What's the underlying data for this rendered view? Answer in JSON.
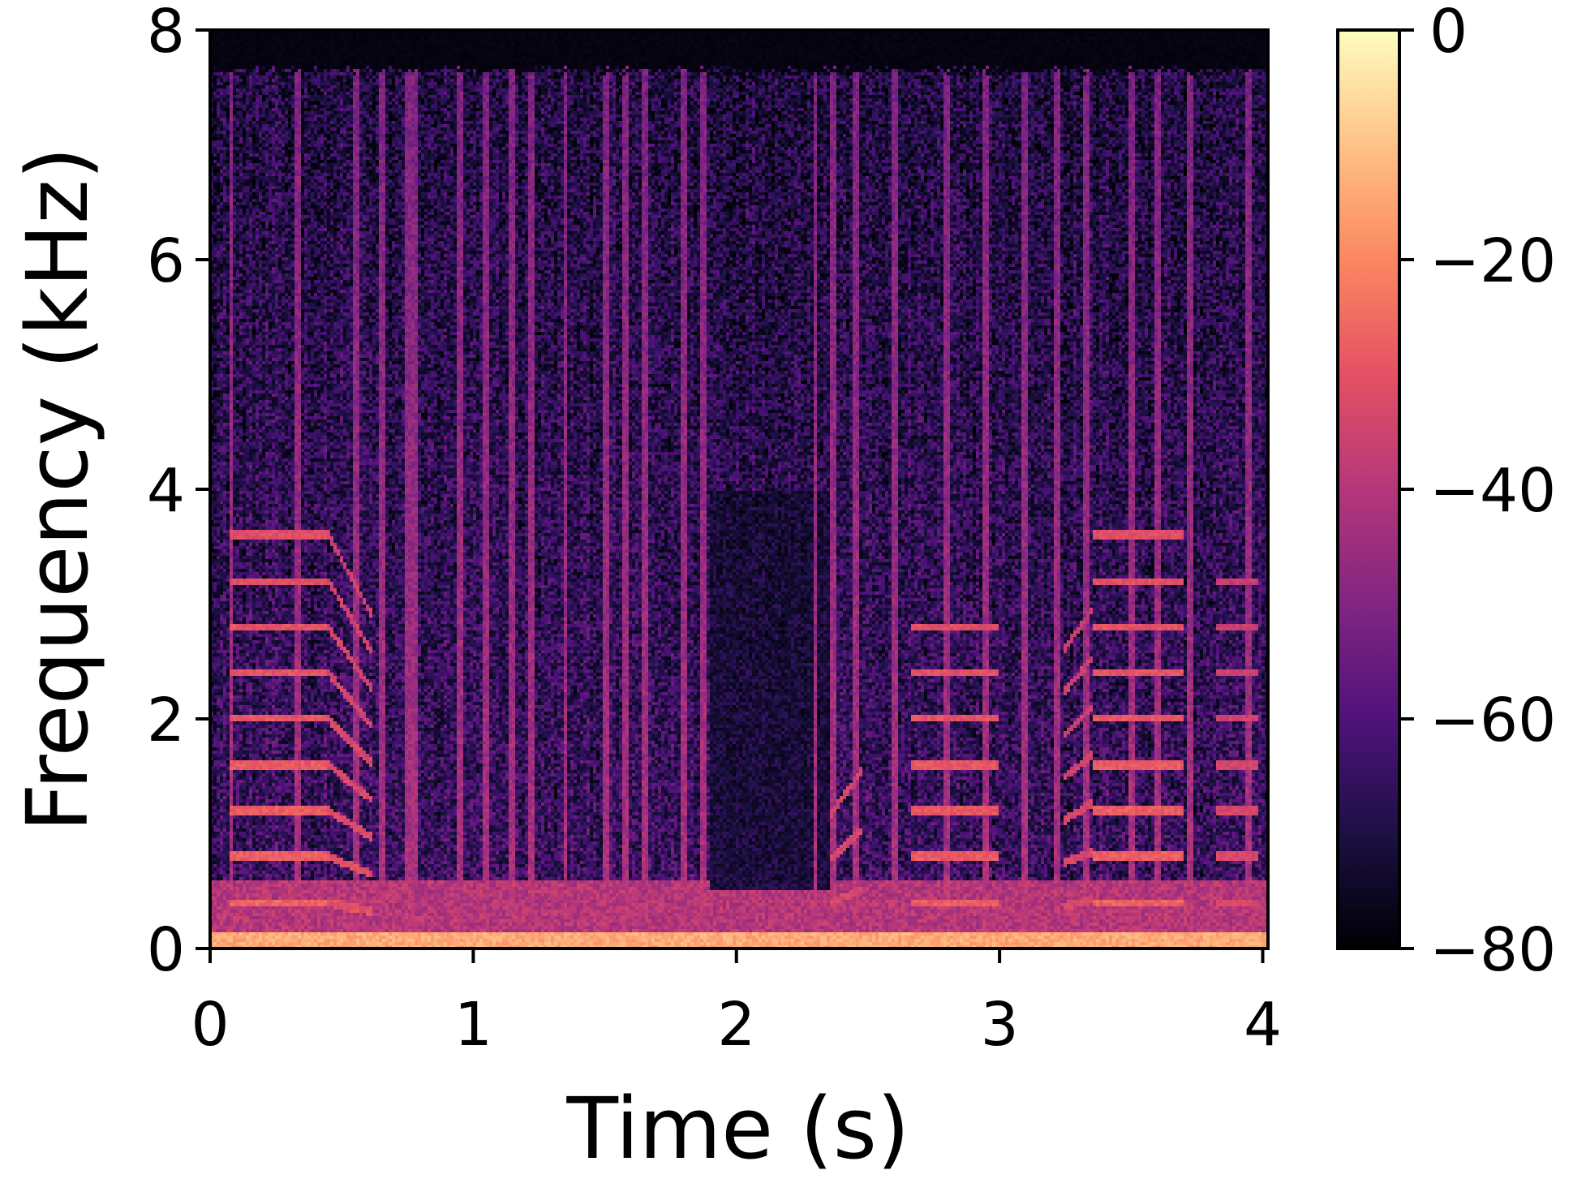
{
  "chart_data": {
    "type": "heatmap",
    "subtype": "spectrogram",
    "xlabel": "Time (s)",
    "ylabel": "Frequency (kHz)",
    "xlim": [
      0,
      4.02
    ],
    "ylim": [
      0,
      8
    ],
    "x_ticks": [
      {
        "value": 0,
        "label": "0"
      },
      {
        "value": 1,
        "label": "1"
      },
      {
        "value": 2,
        "label": "2"
      },
      {
        "value": 3,
        "label": "3"
      },
      {
        "value": 4,
        "label": "4"
      }
    ],
    "y_ticks": [
      {
        "value": 0,
        "label": "0"
      },
      {
        "value": 2,
        "label": "2"
      },
      {
        "value": 4,
        "label": "4"
      },
      {
        "value": 6,
        "label": "6"
      },
      {
        "value": 8,
        "label": "8"
      }
    ],
    "colorbar": {
      "colormap": "magma",
      "range": [
        -80,
        0
      ],
      "ticks": [
        {
          "value": 0,
          "label": "0"
        },
        {
          "value": -20,
          "label": "−20"
        },
        {
          "value": -40,
          "label": "−40"
        },
        {
          "value": -60,
          "label": "−60"
        },
        {
          "value": -80,
          "label": "−80"
        }
      ]
    },
    "content_max_freq_khz": 7.65,
    "noise_floor_db": -64,
    "low_band": {
      "max_khz": 0.15,
      "level_db": -14
    },
    "harmonic_segments": [
      {
        "t0": 0.08,
        "t1": 0.45,
        "f0_khz": 0.4,
        "f1_khz": 0.4,
        "harmonics": 9,
        "level_db": -26
      },
      {
        "t0": 0.45,
        "t1": 0.62,
        "f0_khz": 0.4,
        "f1_khz": 0.32,
        "harmonics": 9,
        "level_db": -30
      },
      {
        "t0": 2.35,
        "t1": 2.48,
        "f0_khz": 0.38,
        "f1_khz": 0.52,
        "harmonics": 3,
        "level_db": -32
      },
      {
        "t0": 2.66,
        "t1": 3.0,
        "f0_khz": 0.4,
        "f1_khz": 0.4,
        "harmonics": 7,
        "level_db": -27
      },
      {
        "t0": 3.24,
        "t1": 3.35,
        "f0_khz": 0.37,
        "f1_khz": 0.42,
        "harmonics": 7,
        "level_db": -32
      },
      {
        "t0": 3.35,
        "t1": 3.7,
        "f0_khz": 0.4,
        "f1_khz": 0.4,
        "harmonics": 9,
        "level_db": -26
      },
      {
        "t0": 3.82,
        "t1": 3.98,
        "f0_khz": 0.4,
        "f1_khz": 0.4,
        "harmonics": 8,
        "level_db": -32
      }
    ],
    "transients_s": [
      0.08,
      0.33,
      0.55,
      0.65,
      0.75,
      0.78,
      0.95,
      1.05,
      1.15,
      1.22,
      1.35,
      1.5,
      1.58,
      1.65,
      1.8,
      1.88,
      2.3,
      2.37,
      2.45,
      2.6,
      2.8,
      2.95,
      3.1,
      3.22,
      3.33,
      3.5,
      3.6,
      3.72,
      3.95
    ],
    "quiet_region": {
      "t0": 1.9,
      "t1": 2.35,
      "f0_khz": 0.5,
      "f1_khz": 4.0,
      "level_db": -70
    }
  }
}
